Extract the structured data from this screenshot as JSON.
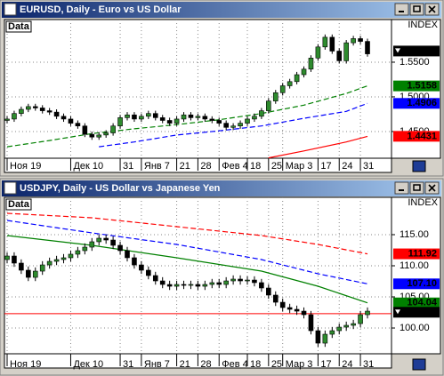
{
  "chart_data": [
    {
      "type": "candlestick",
      "title": "EURUSD, Daily - Euro vs US Dollar",
      "series_name": "Data",
      "scale_label": "INDEX",
      "categories": [
        "Ноя 19",
        null,
        null,
        null,
        null,
        null,
        null,
        null,
        null,
        "Дек 10",
        null,
        null,
        null,
        null,
        null,
        null,
        "31",
        null,
        null,
        "Янв 7",
        null,
        null,
        null,
        null,
        "21",
        null,
        null,
        "28",
        null,
        null,
        "Фев 4",
        null,
        null,
        null,
        "18",
        null,
        null,
        "25",
        null,
        "Мар 3",
        null,
        null,
        null,
        null,
        "17",
        null,
        null,
        "24",
        null,
        null,
        "31",
        null
      ],
      "opens": [
        1.466,
        1.468,
        1.476,
        1.482,
        1.486,
        1.484,
        1.48,
        1.478,
        1.472,
        1.468,
        1.462,
        1.458,
        1.446,
        1.442,
        1.445,
        1.448,
        1.458,
        1.47,
        1.474,
        1.468,
        1.472,
        1.476,
        1.47,
        1.466,
        1.462,
        1.468,
        1.474,
        1.47,
        1.472,
        1.468,
        1.466,
        1.462,
        1.456,
        1.458,
        1.462,
        1.468,
        1.472,
        1.48,
        1.494,
        1.506,
        1.516,
        1.522,
        1.532,
        1.54,
        1.556,
        1.572,
        1.586,
        1.566,
        1.552,
        1.578,
        1.584,
        1.58
      ],
      "highs": [
        1.472,
        1.48,
        1.486,
        1.49,
        1.49,
        1.488,
        1.484,
        1.482,
        1.476,
        1.472,
        1.466,
        1.462,
        1.45,
        1.449,
        1.452,
        1.462,
        1.474,
        1.478,
        1.478,
        1.476,
        1.48,
        1.48,
        1.474,
        1.47,
        1.472,
        1.478,
        1.478,
        1.476,
        1.476,
        1.472,
        1.47,
        1.466,
        1.462,
        1.466,
        1.472,
        1.476,
        1.484,
        1.498,
        1.51,
        1.52,
        1.526,
        1.536,
        1.544,
        1.56,
        1.576,
        1.59,
        1.59,
        1.57,
        1.582,
        1.588,
        1.588,
        1.584
      ],
      "lows": [
        1.462,
        1.464,
        1.472,
        1.478,
        1.48,
        1.476,
        1.474,
        1.468,
        1.464,
        1.458,
        1.454,
        1.442,
        1.438,
        1.438,
        1.441,
        1.444,
        1.454,
        1.466,
        1.464,
        1.464,
        1.468,
        1.466,
        1.462,
        1.458,
        1.458,
        1.464,
        1.466,
        1.466,
        1.464,
        1.462,
        1.458,
        1.452,
        1.452,
        1.454,
        1.458,
        1.464,
        1.468,
        1.476,
        1.49,
        1.502,
        1.512,
        1.518,
        1.528,
        1.536,
        1.552,
        1.568,
        1.562,
        1.548,
        1.548,
        1.574,
        1.576,
        1.558
      ],
      "closes": [
        1.468,
        1.476,
        1.482,
        1.486,
        1.484,
        1.48,
        1.478,
        1.472,
        1.468,
        1.462,
        1.458,
        1.446,
        1.442,
        1.445,
        1.448,
        1.458,
        1.47,
        1.474,
        1.468,
        1.472,
        1.476,
        1.47,
        1.466,
        1.462,
        1.468,
        1.474,
        1.47,
        1.472,
        1.468,
        1.466,
        1.462,
        1.456,
        1.458,
        1.462,
        1.468,
        1.472,
        1.48,
        1.494,
        1.506,
        1.516,
        1.522,
        1.532,
        1.54,
        1.556,
        1.572,
        1.586,
        1.566,
        1.552,
        1.578,
        1.584,
        1.58,
        1.562
      ],
      "up_color": "#2e8b2e",
      "down_color": "#000000",
      "lines": [
        {
          "color": "#008000",
          "x": [
            0,
            6,
            12,
            18,
            24,
            30,
            36,
            42,
            48,
            51
          ],
          "values": [
            1.428,
            1.437,
            1.447,
            1.454,
            1.46,
            1.467,
            1.476,
            1.488,
            1.505,
            1.5158
          ]
        },
        {
          "color": "#0000ff",
          "x": [
            13,
            18,
            24,
            30,
            36,
            42,
            48,
            51
          ],
          "values": [
            1.428,
            1.435,
            1.445,
            1.451,
            1.458,
            1.469,
            1.479,
            1.4906
          ]
        },
        {
          "color": "#ff0000",
          "x": [
            37,
            42,
            48,
            51
          ],
          "values": [
            1.412,
            1.422,
            1.435,
            1.4431
          ]
        }
      ],
      "price_labels": [
        {
          "value": 1.5661,
          "color": "#000000"
        },
        {
          "value": 1.5158,
          "color": "#008000"
        },
        {
          "value": 1.4906,
          "color": "#0000ff"
        },
        {
          "value": 1.4431,
          "color": "#ff0000"
        }
      ],
      "hlines": [],
      "ylim": [
        1.4115,
        1.6115
      ],
      "yticks": [
        {
          "value": 1.55,
          "label": "1.5500"
        },
        {
          "value": 1.5,
          "label": "1.5000"
        },
        {
          "value": 1.45,
          "label": "1.4500"
        }
      ],
      "grid": true
    },
    {
      "type": "candlestick",
      "title": "USDJPY, Daily - US Dollar vs Japanese Yen",
      "series_name": "Data",
      "scale_label": "INDEX",
      "categories": [
        "Ноя 19",
        null,
        null,
        null,
        null,
        null,
        null,
        null,
        null,
        "Дек 10",
        null,
        null,
        null,
        null,
        null,
        null,
        "31",
        null,
        null,
        "Янв 7",
        null,
        null,
        null,
        null,
        "21",
        null,
        null,
        "28",
        null,
        null,
        "Фев 4",
        null,
        null,
        null,
        "18",
        null,
        null,
        "25",
        null,
        "Мар 3",
        null,
        null,
        null,
        null,
        "17",
        null,
        null,
        "24",
        null,
        null,
        "31",
        null
      ],
      "opens": [
        111.0,
        111.57,
        110.43,
        109.29,
        108.14,
        109.14,
        110.14,
        110.71,
        111.0,
        111.29,
        111.86,
        112.43,
        113.0,
        113.86,
        114.43,
        114.14,
        113.29,
        112.43,
        111.29,
        110.14,
        109.29,
        108.43,
        107.57,
        107.0,
        106.71,
        107.0,
        106.86,
        107.0,
        106.71,
        107.0,
        107.29,
        107.0,
        107.57,
        107.86,
        107.57,
        107.71,
        107.29,
        106.43,
        105.29,
        104.14,
        103.29,
        103.0,
        102.71,
        102.14,
        99.57,
        97.57,
        99.0,
        99.57,
        100.14,
        100.43,
        100.71,
        102.14
      ],
      "highs": [
        112.17,
        112.17,
        111.03,
        109.89,
        109.74,
        110.74,
        111.31,
        111.6,
        111.89,
        112.46,
        113.03,
        113.6,
        114.46,
        115.03,
        115.03,
        114.74,
        113.89,
        113.03,
        111.89,
        110.74,
        109.89,
        109.03,
        108.17,
        107.6,
        107.6,
        107.6,
        107.6,
        107.6,
        107.6,
        107.89,
        107.89,
        108.17,
        108.46,
        108.46,
        108.31,
        108.31,
        107.89,
        107.03,
        105.89,
        104.74,
        103.89,
        103.6,
        103.31,
        102.74,
        100.17,
        99.6,
        100.17,
        100.74,
        101.03,
        101.31,
        102.74,
        103.31
      ],
      "lows": [
        110.4,
        109.83,
        108.69,
        107.54,
        107.54,
        108.54,
        109.54,
        110.11,
        110.4,
        110.69,
        111.26,
        111.83,
        112.4,
        113.26,
        113.54,
        112.69,
        111.83,
        110.69,
        109.54,
        108.69,
        107.83,
        106.97,
        106.4,
        106.11,
        106.11,
        106.26,
        106.26,
        106.11,
        106.11,
        106.4,
        106.4,
        106.4,
        106.97,
        106.97,
        106.97,
        106.69,
        105.83,
        104.69,
        103.54,
        102.69,
        102.4,
        102.11,
        101.54,
        98.97,
        96.97,
        96.97,
        98.4,
        98.97,
        99.54,
        99.83,
        100.11,
        101.54
      ],
      "closes": [
        111.57,
        110.43,
        109.29,
        108.14,
        109.14,
        110.14,
        110.71,
        111.0,
        111.29,
        111.86,
        112.43,
        113.0,
        113.86,
        114.43,
        114.14,
        113.29,
        112.43,
        111.29,
        110.14,
        109.29,
        108.43,
        107.57,
        107.0,
        106.71,
        107.0,
        106.86,
        107.0,
        106.71,
        107.0,
        107.29,
        107.0,
        107.57,
        107.86,
        107.57,
        107.71,
        107.29,
        106.43,
        105.29,
        104.14,
        103.29,
        103.0,
        102.71,
        102.14,
        99.57,
        97.57,
        99.0,
        99.57,
        100.14,
        100.43,
        100.71,
        102.14,
        102.71
      ],
      "up_color": "#2e8b2e",
      "down_color": "#000000",
      "lines": [
        {
          "color": "#ff0000",
          "x": [
            0,
            12,
            24,
            36,
            44,
            51
          ],
          "values": [
            118.43,
            117.71,
            116.29,
            114.86,
            113.43,
            111.92
          ]
        },
        {
          "color": "#0000ff",
          "x": [
            0,
            12,
            24,
            36,
            44,
            51
          ],
          "values": [
            117.29,
            115.29,
            113.43,
            111.0,
            108.71,
            107.1
          ]
        },
        {
          "color": "#008000",
          "x": [
            0,
            12,
            24,
            36,
            44,
            51
          ],
          "values": [
            114.86,
            113.29,
            111.29,
            109.14,
            106.71,
            104.04
          ]
        }
      ],
      "price_labels": [
        {
          "value": 111.92,
          "color": "#ff0000"
        },
        {
          "value": 107.1,
          "label": "107.10",
          "color": "#0000ff"
        },
        {
          "value": 104.04,
          "color": "#008000"
        },
        {
          "value": 102.53,
          "color": "#000000"
        }
      ],
      "hlines": [
        {
          "value": 102.3,
          "color": "#ff0000"
        }
      ],
      "ylim": [
        95.86,
        121
      ],
      "yticks": [
        {
          "value": 115,
          "label": "115.00"
        },
        {
          "value": 110,
          "label": "110.00"
        },
        {
          "value": 105,
          "label": "105.00"
        },
        {
          "value": 100,
          "label": "100.00"
        }
      ],
      "grid": true
    }
  ]
}
